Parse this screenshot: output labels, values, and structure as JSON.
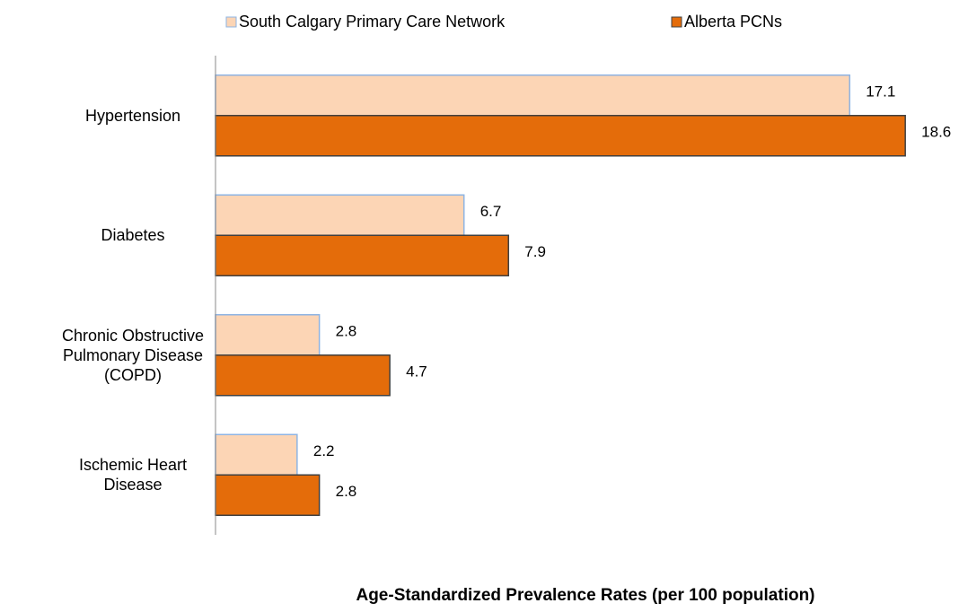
{
  "chart_data": {
    "type": "bar",
    "orientation": "horizontal",
    "x_label": "Age-Standardized Prevalence Rates (per 100 population)",
    "categories": [
      "Hypertension",
      "Diabetes",
      "Chronic Obstructive\nPulmonary Disease\n(COPD)",
      "Ischemic Heart\nDisease"
    ],
    "series": [
      {
        "name": "South Calgary Primary Care Network",
        "color": "#fcd5b5",
        "edge": "#8eb4e3",
        "values": [
          17.1,
          6.7,
          2.8,
          2.2
        ]
      },
      {
        "name": "Alberta PCNs",
        "color": "#e46c0a",
        "edge": "#404040",
        "values": [
          18.6,
          7.9,
          4.7,
          2.8
        ]
      }
    ],
    "xlim": [
      0,
      20
    ],
    "legend": "top"
  }
}
